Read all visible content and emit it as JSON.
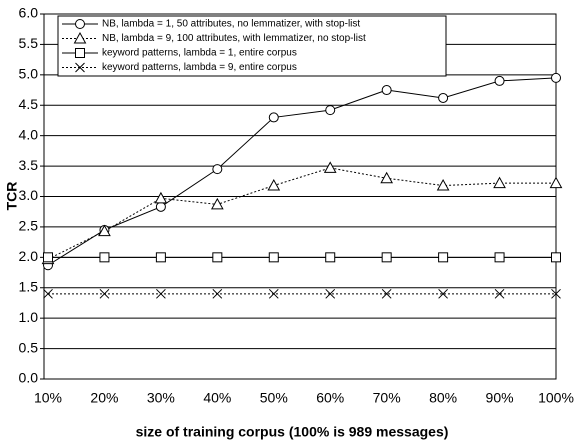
{
  "chart_data": {
    "type": "line",
    "xlabel": "size of training corpus (100% is 989 messages)",
    "ylabel": "TCR",
    "categories": [
      "10%",
      "20%",
      "30%",
      "40%",
      "50%",
      "60%",
      "70%",
      "80%",
      "90%",
      "100%"
    ],
    "ylim": [
      0,
      6
    ],
    "yticks": [
      {
        "value": 0,
        "label": "0.0"
      },
      0.5,
      {
        "value": 1,
        "label": "1.0"
      },
      1.5,
      {
        "value": 2,
        "label": "2.0"
      },
      2.5,
      {
        "value": 3,
        "label": "3.0"
      },
      3.5,
      {
        "value": 4,
        "label": "4.0"
      },
      4.5,
      {
        "value": 5,
        "label": "5.0"
      },
      5.5,
      {
        "value": 6,
        "label": "6.0"
      }
    ],
    "grid": true,
    "legend": "upper left",
    "series": [
      {
        "name": "NB, lambda = 1, 50 attributes, no lemmatizer, with stop-list",
        "color": "#000000",
        "marker": "circle",
        "linestyle": "solid",
        "values": [
          1.87,
          2.45,
          2.83,
          3.45,
          4.3,
          4.42,
          4.75,
          4.62,
          4.9,
          4.95
        ]
      },
      {
        "name": "NB, lambda = 9, 100 attributes, with lemmatizer, no stop-list",
        "color": "#000000",
        "marker": "triangle",
        "linestyle": "dotted",
        "values": [
          1.97,
          2.43,
          2.97,
          2.87,
          3.18,
          3.47,
          3.3,
          3.18,
          3.22,
          3.22
        ]
      },
      {
        "name": "keyword patterns, lambda = 1, entire corpus",
        "color": "#000000",
        "marker": "square",
        "linestyle": "solid",
        "values": [
          2.0,
          2.0,
          2.0,
          2.0,
          2.0,
          2.0,
          2.0,
          2.0,
          2.0,
          2.0
        ]
      },
      {
        "name": "keyword patterns, lambda = 9, entire corpus",
        "color": "#000000",
        "marker": "x",
        "linestyle": "dotted",
        "values": [
          1.4,
          1.4,
          1.4,
          1.4,
          1.4,
          1.4,
          1.4,
          1.4,
          1.4,
          1.4
        ]
      }
    ]
  }
}
